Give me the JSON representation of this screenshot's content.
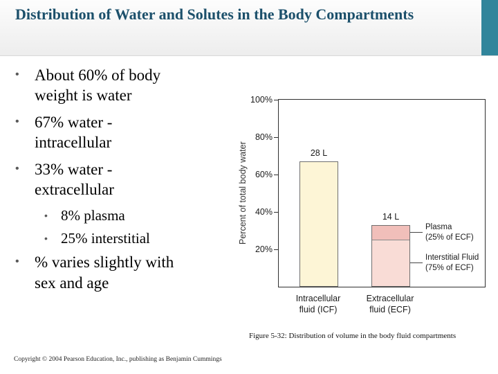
{
  "slide": {
    "title": "Distribution of Water and Solutes in the Body Compartments",
    "bullet_char": "•",
    "caption": "Figure 5-32: Distribution of volume in the body fluid compartments",
    "copyright": "Copyright © 2004 Pearson Education, Inc., publishing as Benjamin Cummings"
  },
  "bullets": [
    {
      "level": 1,
      "text": "About 60% of body weight is water"
    },
    {
      "level": 1,
      "text": "67%  water - intracellular"
    },
    {
      "level": 1,
      "text": "33%  water - extracellular"
    },
    {
      "level": 2,
      "text": "8% plasma"
    },
    {
      "level": 2,
      "text": "25% interstitial"
    },
    {
      "level": 1,
      "text": "% varies slightly with sex and age"
    }
  ],
  "colors": {
    "title": "#1c506b",
    "accent": "#31859b",
    "axis": "#2e2e2e"
  },
  "chart_data": {
    "type": "bar",
    "title": "",
    "ylabel": "Percent of total body water",
    "xlabel": "",
    "ylim": [
      0,
      100
    ],
    "yticks": [
      20,
      40,
      60,
      80,
      100
    ],
    "ytick_suffix": "%",
    "grid": false,
    "categories": [
      "Intracellular\nfluid (ICF)",
      "Extracellular\nfluid (ECF)"
    ],
    "bars": [
      {
        "category": "Intracellular fluid (ICF)",
        "value": 67,
        "volume_label": "28 L",
        "color": "#fdf5d6"
      },
      {
        "category": "Extracellular fluid (ECF)",
        "value": 33,
        "volume_label": "14 L",
        "color": "#f9dcd6",
        "segments": [
          {
            "name": "Plasma\n(25% of ECF)",
            "value": 8,
            "color": "#f1bfba"
          },
          {
            "name": "Interstitial Fluid\n(75% of ECF)",
            "value": 25,
            "color": "#f9dcd6"
          }
        ]
      }
    ]
  }
}
